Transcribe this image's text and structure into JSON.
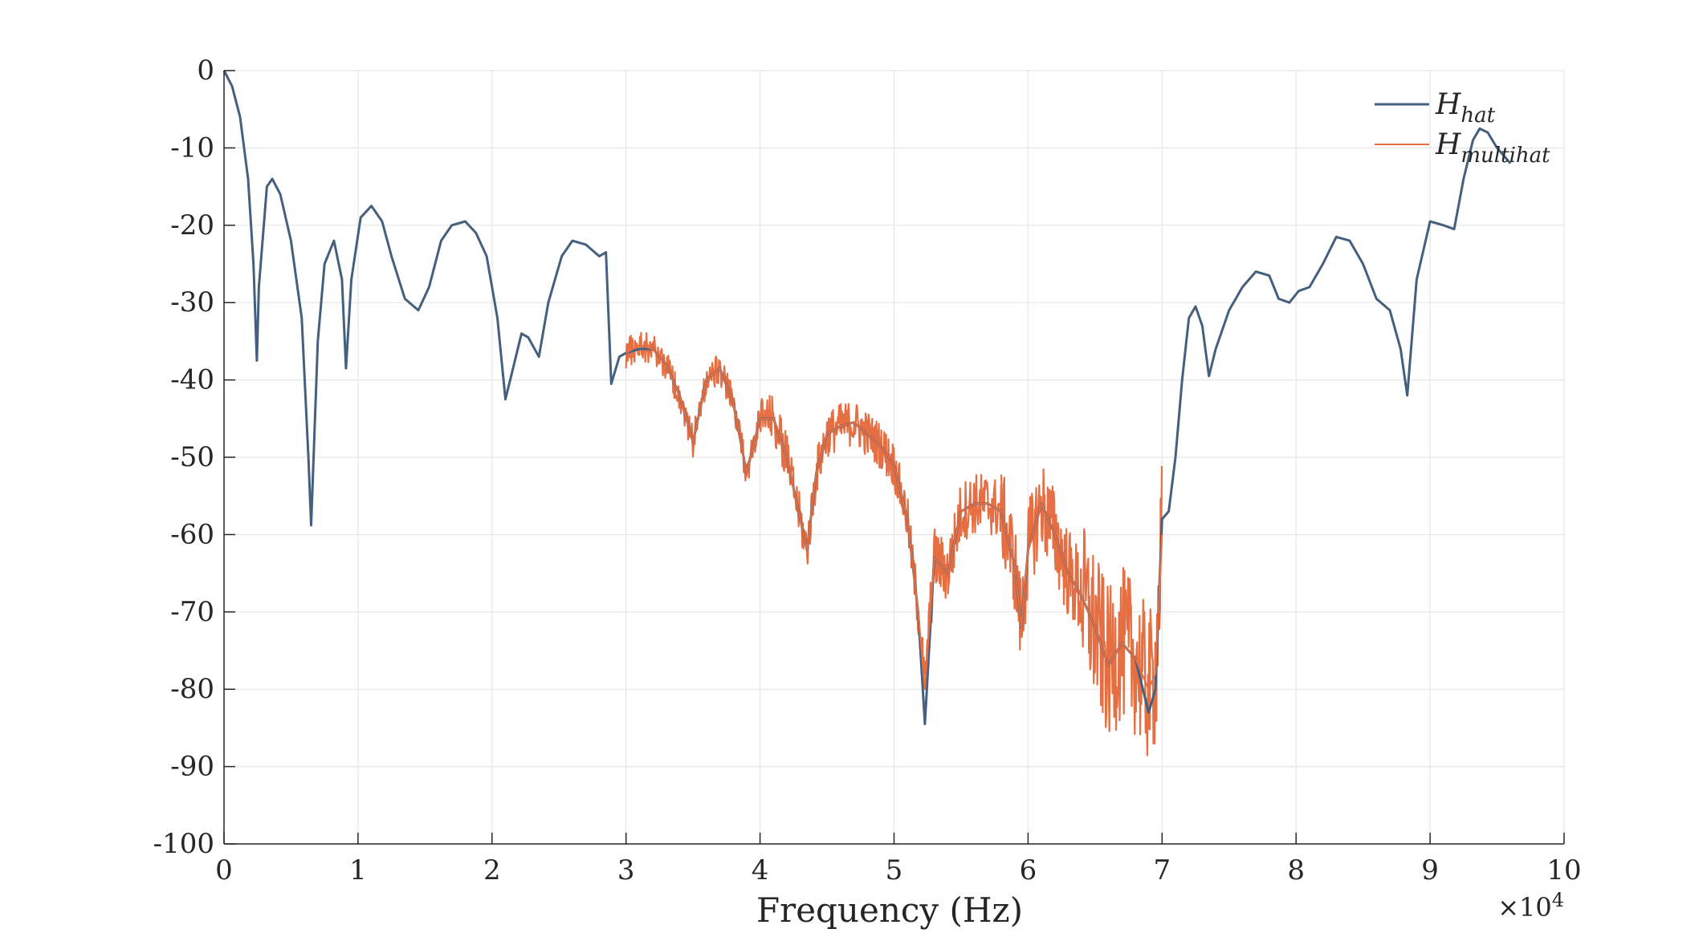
{
  "chart_data": {
    "type": "line",
    "title": "",
    "xlabel": "Frequency (Hz)",
    "ylabel": "",
    "x_exponent_label": "×10",
    "x_exponent_sup": "4",
    "xlim": [
      0,
      100000
    ],
    "ylim": [
      -100,
      0
    ],
    "x_ticks": [
      0,
      10000,
      20000,
      30000,
      40000,
      50000,
      60000,
      70000,
      80000,
      90000,
      100000
    ],
    "x_tick_labels": [
      "0",
      "1",
      "2",
      "3",
      "4",
      "5",
      "6",
      "7",
      "8",
      "9",
      "10"
    ],
    "y_ticks": [
      0,
      -10,
      -20,
      -30,
      -40,
      -50,
      -60,
      -70,
      -80,
      -90,
      -100
    ],
    "y_tick_labels": [
      "0",
      "-10",
      "-20",
      "-30",
      "-40",
      "-50",
      "-60",
      "-70",
      "-80",
      "-90",
      "-100"
    ],
    "grid": true,
    "legend_position": "top-right",
    "series": [
      {
        "name": "H_hat",
        "legend_main": "H",
        "legend_sub": "hat",
        "color": "#0072BD",
        "display_color": "#44607e",
        "x": [
          0,
          600,
          1200,
          1800,
          2200,
          2450,
          2600,
          3200,
          3600,
          4200,
          5000,
          5800,
          6300,
          6500,
          7000,
          7500,
          8200,
          8800,
          9100,
          9500,
          10200,
          11000,
          11800,
          12500,
          13500,
          14500,
          15300,
          16200,
          17000,
          18000,
          18800,
          19600,
          20400,
          21000,
          21500,
          22200,
          22700,
          23500,
          24200,
          25200,
          26000,
          27000,
          28000,
          28500,
          28900,
          29500,
          30000,
          31000,
          32000,
          33000,
          34000,
          35000,
          36000,
          37000,
          38000,
          39000,
          40000,
          41000,
          42000,
          43000,
          43500,
          44200,
          45000,
          46000,
          47000,
          48000,
          49000,
          50000,
          51000,
          51800,
          52300,
          53000,
          54000,
          55000,
          56000,
          57000,
          58000,
          59000,
          59500,
          60000,
          61000,
          62000,
          63000,
          64000,
          65000,
          66000,
          67000,
          68000,
          69000,
          69500,
          70000,
          70500,
          71000,
          71500,
          72000,
          72500,
          73000,
          73500,
          74000,
          75000,
          76000,
          77000,
          78000,
          78700,
          79500,
          80200,
          81000,
          82000,
          83000,
          84000,
          85000,
          86000,
          87000,
          87800,
          88300,
          89000,
          90000,
          91000,
          91800,
          92500,
          93200,
          93700,
          94300,
          95000,
          96000
        ],
        "y": [
          0,
          -2,
          -6,
          -14,
          -25,
          -37.5,
          -28,
          -15,
          -14,
          -16,
          -22,
          -32,
          -50,
          -58.8,
          -35,
          -25,
          -22,
          -27,
          -38.5,
          -27,
          -19,
          -17.5,
          -19.5,
          -24,
          -29.5,
          -31,
          -28,
          -22,
          -20,
          -19.5,
          -21,
          -24,
          -32,
          -42.5,
          -39,
          -34,
          -34.5,
          -37,
          -30,
          -24,
          -22,
          -22.5,
          -24,
          -23.5,
          -40.5,
          -37,
          -36.5,
          -36,
          -36,
          -38,
          -42,
          -48,
          -40,
          -38.5,
          -43,
          -52,
          -45,
          -45,
          -50,
          -58,
          -62,
          -52,
          -47,
          -46,
          -45.5,
          -47,
          -48.5,
          -51,
          -58,
          -70,
          -84.5,
          -63,
          -65,
          -57,
          -56,
          -56,
          -57,
          -64,
          -72,
          -62,
          -56,
          -60,
          -65,
          -68,
          -72,
          -77,
          -74,
          -76,
          -83,
          -80,
          -58,
          -57,
          -50,
          -40,
          -32,
          -30.5,
          -33,
          -39.5,
          -36,
          -31,
          -28,
          -26,
          -26.5,
          -29.5,
          -30,
          -28.5,
          -28,
          -25,
          -21.5,
          -22,
          -25,
          -29.5,
          -31,
          -36,
          -42,
          -27,
          -19.5,
          -20,
          -20.5,
          -14,
          -9,
          -7.5,
          -8,
          -10,
          -12
        ]
      },
      {
        "name": "H_multihat",
        "legend_main": "H",
        "legend_sub": "multihat",
        "color": "#D95319",
        "display_color": "#e56f42",
        "x": [
          30000,
          31000,
          32000,
          33000,
          34000,
          35000,
          36000,
          37000,
          38000,
          39000,
          40000,
          41000,
          42000,
          43000,
          43500,
          44200,
          45000,
          46000,
          47000,
          48000,
          49000,
          50000,
          51000,
          51800,
          52300,
          53000,
          54000,
          55000,
          56000,
          57000,
          58000,
          59000,
          59500,
          60000,
          61000,
          62000,
          63000,
          64000,
          65000,
          66000,
          67000,
          68000,
          69000,
          69500,
          70000
        ],
        "y": [
          -36.5,
          -35.5,
          -36,
          -38,
          -42,
          -48,
          -40,
          -38.5,
          -43,
          -52,
          -45,
          -45,
          -50,
          -58,
          -62,
          -52,
          -47,
          -46,
          -45.5,
          -47,
          -48.5,
          -51,
          -58,
          -70,
          -80,
          -63,
          -65,
          -57,
          -56,
          -56,
          -57,
          -64,
          -72,
          -62,
          -56,
          -60,
          -65,
          -68,
          -72,
          -77,
          -74,
          -76,
          -80,
          -78,
          -60
        ]
      }
    ],
    "noise_bands": [
      {
        "series": "H_multihat",
        "x_start": 30000,
        "x_end": 40000,
        "amplitude": 2
      },
      {
        "series": "H_multihat",
        "x_start": 40000,
        "x_end": 52000,
        "amplitude": 3
      },
      {
        "series": "H_multihat",
        "x_start": 52000,
        "x_end": 58000,
        "amplitude": 4
      },
      {
        "series": "H_multihat",
        "x_start": 58000,
        "x_end": 64000,
        "amplitude": 6
      },
      {
        "series": "H_multihat",
        "x_start": 64000,
        "x_end": 70000,
        "amplitude": 10
      }
    ]
  }
}
